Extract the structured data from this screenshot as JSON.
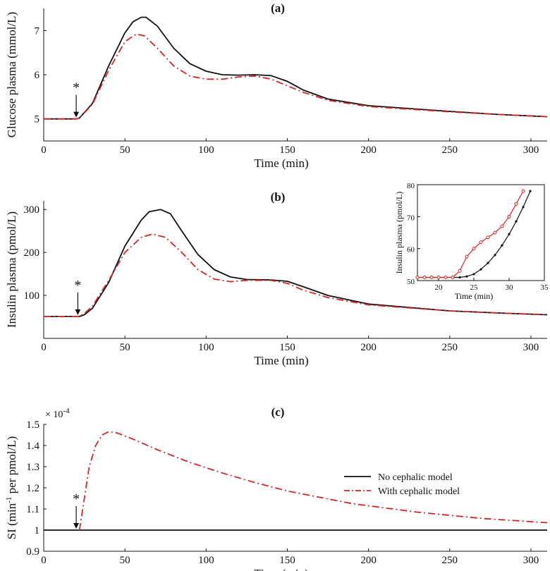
{
  "chart_data": [
    {
      "panel": "(a)",
      "type": "line",
      "title": "(a)",
      "xlabel": "Time (min)",
      "ylabel": "Glucose plasma (mmol/L)",
      "xlim": [
        0,
        310
      ],
      "ylim": [
        4.5,
        7.5
      ],
      "xticks": [
        0,
        50,
        100,
        150,
        200,
        250,
        300
      ],
      "yticks": [
        5,
        6,
        7
      ],
      "annotation": {
        "text": "*",
        "x": 20,
        "y": 5
      },
      "series": [
        {
          "name": "No cephalic model",
          "color": "#111111",
          "style": "solid",
          "points": [
            [
              0,
              5
            ],
            [
              20,
              5
            ],
            [
              22,
              5.02
            ],
            [
              30,
              5.35
            ],
            [
              40,
              6.2
            ],
            [
              50,
              6.95
            ],
            [
              55,
              7.2
            ],
            [
              60,
              7.3
            ],
            [
              63,
              7.3
            ],
            [
              70,
              7.1
            ],
            [
              80,
              6.6
            ],
            [
              90,
              6.25
            ],
            [
              100,
              6.08
            ],
            [
              110,
              6.0
            ],
            [
              120,
              5.99
            ],
            [
              130,
              6.0
            ],
            [
              140,
              5.98
            ],
            [
              150,
              5.85
            ],
            [
              160,
              5.65
            ],
            [
              175,
              5.45
            ],
            [
              200,
              5.3
            ],
            [
              250,
              5.17
            ],
            [
              280,
              5.1
            ],
            [
              310,
              5.05
            ]
          ]
        },
        {
          "name": "With cephalic model",
          "color": "#d62728",
          "style": "dashdot",
          "points": [
            [
              0,
              5
            ],
            [
              20,
              5
            ],
            [
              22,
              5.02
            ],
            [
              30,
              5.33
            ],
            [
              40,
              6.1
            ],
            [
              50,
              6.75
            ],
            [
              57,
              6.92
            ],
            [
              62,
              6.88
            ],
            [
              70,
              6.6
            ],
            [
              80,
              6.2
            ],
            [
              90,
              5.97
            ],
            [
              100,
              5.9
            ],
            [
              110,
              5.9
            ],
            [
              120,
              5.95
            ],
            [
              130,
              5.97
            ],
            [
              140,
              5.9
            ],
            [
              150,
              5.75
            ],
            [
              160,
              5.6
            ],
            [
              175,
              5.42
            ],
            [
              200,
              5.28
            ],
            [
              250,
              5.16
            ],
            [
              280,
              5.1
            ],
            [
              310,
              5.05
            ]
          ]
        }
      ]
    },
    {
      "panel": "(b)",
      "type": "line",
      "title": "(b)",
      "xlabel": "Time (min)",
      "ylabel": "Insulin plasma (pmol/L)",
      "xlim": [
        0,
        310
      ],
      "ylim": [
        0,
        320
      ],
      "xticks": [
        0,
        50,
        100,
        150,
        200,
        250,
        300
      ],
      "yticks": [
        100,
        200,
        300
      ],
      "annotation": {
        "text": "*",
        "x": 21,
        "y": 51
      },
      "series": [
        {
          "name": "No cephalic model",
          "color": "#111111",
          "style": "solid",
          "points": [
            [
              0,
              51
            ],
            [
              22,
              51
            ],
            [
              25,
              55
            ],
            [
              30,
              70
            ],
            [
              40,
              130
            ],
            [
              50,
              215
            ],
            [
              60,
              275
            ],
            [
              65,
              295
            ],
            [
              72,
              300
            ],
            [
              78,
              290
            ],
            [
              85,
              250
            ],
            [
              95,
              195
            ],
            [
              105,
              160
            ],
            [
              115,
              143
            ],
            [
              125,
              137
            ],
            [
              140,
              136
            ],
            [
              150,
              133
            ],
            [
              160,
              120
            ],
            [
              175,
              100
            ],
            [
              200,
              80
            ],
            [
              250,
              64
            ],
            [
              280,
              59
            ],
            [
              310,
              55
            ]
          ]
        },
        {
          "name": "With cephalic model",
          "color": "#d62728",
          "style": "dashdot",
          "points": [
            [
              0,
              51
            ],
            [
              22,
              51
            ],
            [
              25,
              58
            ],
            [
              30,
              75
            ],
            [
              40,
              135
            ],
            [
              50,
              200
            ],
            [
              60,
              235
            ],
            [
              67,
              243
            ],
            [
              75,
              235
            ],
            [
              85,
              200
            ],
            [
              95,
              160
            ],
            [
              105,
              138
            ],
            [
              115,
              132
            ],
            [
              125,
              135
            ],
            [
              140,
              135
            ],
            [
              150,
              128
            ],
            [
              160,
              112
            ],
            [
              175,
              95
            ],
            [
              200,
              78
            ],
            [
              250,
              64
            ],
            [
              280,
              59
            ],
            [
              310,
              55
            ]
          ]
        }
      ]
    },
    {
      "panel": "(b) inset",
      "type": "line",
      "xlabel": "Time (min)",
      "ylabel": "Insulin plasma (pmol/L)",
      "xlim": [
        17,
        35
      ],
      "ylim": [
        50,
        80
      ],
      "xticks": [
        20,
        25,
        30,
        35
      ],
      "yticks": [
        50,
        60,
        70,
        80
      ],
      "series": [
        {
          "name": "No cephalic model",
          "color": "#111111",
          "style": "solid-markers",
          "points": [
            [
              17,
              51
            ],
            [
              18,
              51
            ],
            [
              19,
              51
            ],
            [
              20,
              51
            ],
            [
              21,
              51
            ],
            [
              22,
              51
            ],
            [
              23,
              51
            ],
            [
              24,
              51.3
            ],
            [
              25,
              52
            ],
            [
              26,
              53.5
            ],
            [
              27,
              55.5
            ],
            [
              28,
              58
            ],
            [
              29,
              61
            ],
            [
              30,
              64.5
            ],
            [
              31,
              68.5
            ],
            [
              32,
              73
            ],
            [
              33,
              78
            ]
          ]
        },
        {
          "name": "With cephalic model",
          "color": "#d62728",
          "style": "solid-markers",
          "points": [
            [
              17,
              51
            ],
            [
              18,
              51
            ],
            [
              19,
              51
            ],
            [
              20,
              51
            ],
            [
              21,
              51
            ],
            [
              22,
              51
            ],
            [
              23,
              53
            ],
            [
              24,
              57.5
            ],
            [
              25,
              60
            ],
            [
              26,
              62
            ],
            [
              27,
              63.5
            ],
            [
              28,
              65
            ],
            [
              29,
              67
            ],
            [
              30,
              70
            ],
            [
              31,
              74
            ],
            [
              32,
              78
            ]
          ]
        }
      ]
    },
    {
      "panel": "(c)",
      "type": "line",
      "title": "(c)",
      "xlabel": "Time (min)",
      "ylabel": "SI (min-1 per pmol/L)",
      "scale_factor": "× 10-4",
      "xlim": [
        0,
        310
      ],
      "ylim": [
        0.9,
        1.5
      ],
      "xticks": [
        0,
        50,
        100,
        150,
        200,
        250,
        300
      ],
      "yticks": [
        0.9,
        1,
        1.1,
        1.2,
        1.3,
        1.4,
        1.5
      ],
      "annotation": {
        "text": "*",
        "x": 20,
        "y": 1.0
      },
      "legend": {
        "placement": "right",
        "entries": [
          "No cephalic model",
          "With cephalic model"
        ]
      },
      "series": [
        {
          "name": "No cephalic model",
          "color": "#111111",
          "style": "solid",
          "points": [
            [
              0,
              1.0
            ],
            [
              310,
              1.0
            ]
          ]
        },
        {
          "name": "With cephalic model",
          "color": "#d62728",
          "style": "dashdot",
          "points": [
            [
              22,
              1.0
            ],
            [
              25,
              1.15
            ],
            [
              28,
              1.3
            ],
            [
              32,
              1.4
            ],
            [
              36,
              1.45
            ],
            [
              40,
              1.465
            ],
            [
              45,
              1.46
            ],
            [
              55,
              1.43
            ],
            [
              70,
              1.38
            ],
            [
              90,
              1.32
            ],
            [
              110,
              1.27
            ],
            [
              130,
              1.225
            ],
            [
              150,
              1.185
            ],
            [
              170,
              1.155
            ],
            [
              190,
              1.125
            ],
            [
              210,
              1.105
            ],
            [
              230,
              1.085
            ],
            [
              250,
              1.07
            ],
            [
              270,
              1.055
            ],
            [
              290,
              1.045
            ],
            [
              310,
              1.035
            ]
          ]
        }
      ]
    }
  ]
}
